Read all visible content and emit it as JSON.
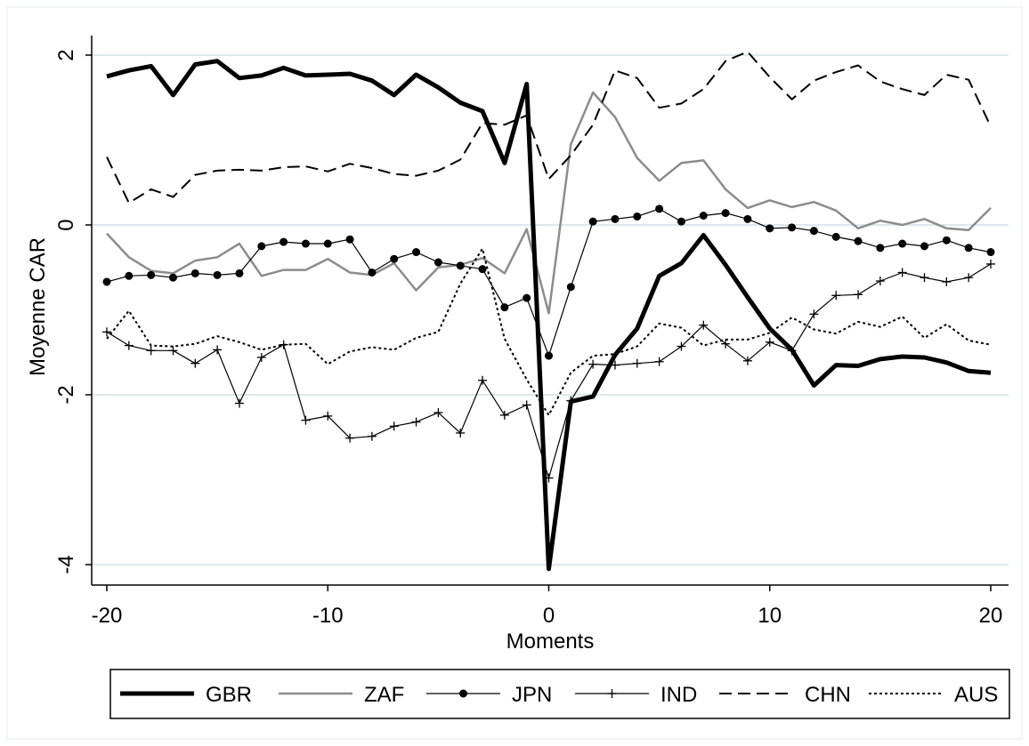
{
  "chart_data": {
    "type": "line",
    "xlabel": "Moments",
    "ylabel": "Moyenne CAR",
    "xlim": [
      -20,
      20
    ],
    "ylim": [
      -4.2,
      2.2
    ],
    "xticks": [
      "-20",
      "-10",
      "0",
      "10",
      "20"
    ],
    "yticks": [
      "2",
      "0",
      "-2",
      "-4"
    ],
    "grid": true,
    "legend_position": "bottom",
    "x": [
      -20,
      -19,
      -18,
      -17,
      -16,
      -15,
      -14,
      -13,
      -12,
      -11,
      -10,
      -9,
      -8,
      -7,
      -6,
      -5,
      -4,
      -3,
      -2,
      -1,
      0,
      1,
      2,
      3,
      4,
      5,
      6,
      7,
      8,
      9,
      10,
      11,
      12,
      13,
      14,
      15,
      16,
      17,
      18,
      19,
      20
    ],
    "series": [
      {
        "name": "GBR",
        "style": "thick",
        "color": "#000000",
        "values": [
          1.75,
          1.82,
          1.87,
          1.53,
          1.89,
          1.93,
          1.73,
          1.76,
          1.85,
          1.76,
          1.77,
          1.78,
          1.7,
          1.53,
          1.77,
          1.62,
          1.44,
          1.34,
          0.73,
          1.66,
          -4.05,
          -2.08,
          -2.02,
          -1.53,
          -1.22,
          -0.6,
          -0.45,
          -0.12,
          -0.47,
          -0.85,
          -1.22,
          -1.47,
          -1.89,
          -1.65,
          -1.66,
          -1.58,
          -1.55,
          -1.56,
          -1.62,
          -1.72,
          -1.74
        ]
      },
      {
        "name": "ZAF",
        "style": "gray",
        "color": "#8c8c8c",
        "values": [
          -0.1,
          -0.38,
          -0.54,
          -0.57,
          -0.42,
          -0.38,
          -0.22,
          -0.6,
          -0.53,
          -0.53,
          -0.4,
          -0.56,
          -0.59,
          -0.45,
          -0.77,
          -0.5,
          -0.47,
          -0.39,
          -0.57,
          -0.05,
          -1.04,
          0.95,
          1.56,
          1.27,
          0.79,
          0.52,
          0.73,
          0.76,
          0.42,
          0.2,
          0.29,
          0.21,
          0.27,
          0.17,
          -0.04,
          0.05,
          0.0,
          0.07,
          -0.04,
          -0.06,
          0.2
        ]
      },
      {
        "name": "JPN",
        "style": "dot-marker",
        "color": "#000000",
        "values": [
          -0.67,
          -0.6,
          -0.59,
          -0.62,
          -0.57,
          -0.59,
          -0.57,
          -0.25,
          -0.2,
          -0.22,
          -0.22,
          -0.17,
          -0.56,
          -0.4,
          -0.32,
          -0.44,
          -0.48,
          -0.52,
          -0.97,
          -0.86,
          -1.54,
          -0.73,
          0.04,
          0.07,
          0.1,
          0.19,
          0.04,
          0.11,
          0.14,
          0.07,
          -0.04,
          -0.03,
          -0.07,
          -0.14,
          -0.19,
          -0.27,
          -0.22,
          -0.25,
          -0.18,
          -0.27,
          -0.32
        ]
      },
      {
        "name": "IND",
        "style": "plus-marker",
        "color": "#000000",
        "values": [
          -1.26,
          -1.42,
          -1.48,
          -1.48,
          -1.63,
          -1.47,
          -2.1,
          -1.56,
          -1.41,
          -2.3,
          -2.25,
          -2.51,
          -2.49,
          -2.37,
          -2.32,
          -2.21,
          -2.45,
          -1.83,
          -2.24,
          -2.12,
          -2.98,
          -2.07,
          -1.64,
          -1.65,
          -1.63,
          -1.61,
          -1.43,
          -1.18,
          -1.4,
          -1.6,
          -1.38,
          -1.48,
          -1.05,
          -0.83,
          -0.82,
          -0.66,
          -0.56,
          -0.62,
          -0.67,
          -0.62,
          -0.46
        ]
      },
      {
        "name": "CHN",
        "style": "dashed",
        "color": "#000000",
        "values": [
          0.8,
          0.26,
          0.42,
          0.33,
          0.59,
          0.64,
          0.65,
          0.64,
          0.68,
          0.69,
          0.63,
          0.72,
          0.67,
          0.6,
          0.58,
          0.64,
          0.77,
          1.2,
          1.18,
          1.29,
          0.54,
          0.82,
          1.18,
          1.82,
          1.73,
          1.38,
          1.43,
          1.6,
          1.93,
          2.04,
          1.74,
          1.48,
          1.7,
          1.8,
          1.88,
          1.69,
          1.6,
          1.53,
          1.77,
          1.71,
          1.16
        ]
      },
      {
        "name": "AUS",
        "style": "dotted",
        "color": "#000000",
        "values": [
          -1.34,
          -1.01,
          -1.42,
          -1.43,
          -1.4,
          -1.31,
          -1.38,
          -1.47,
          -1.41,
          -1.4,
          -1.64,
          -1.49,
          -1.44,
          -1.47,
          -1.33,
          -1.26,
          -0.69,
          -0.28,
          -1.34,
          -1.82,
          -2.24,
          -1.74,
          -1.54,
          -1.52,
          -1.43,
          -1.16,
          -1.21,
          -1.42,
          -1.35,
          -1.35,
          -1.27,
          -1.09,
          -1.23,
          -1.28,
          -1.14,
          -1.2,
          -1.08,
          -1.33,
          -1.17,
          -1.36,
          -1.41
        ]
      }
    ]
  }
}
